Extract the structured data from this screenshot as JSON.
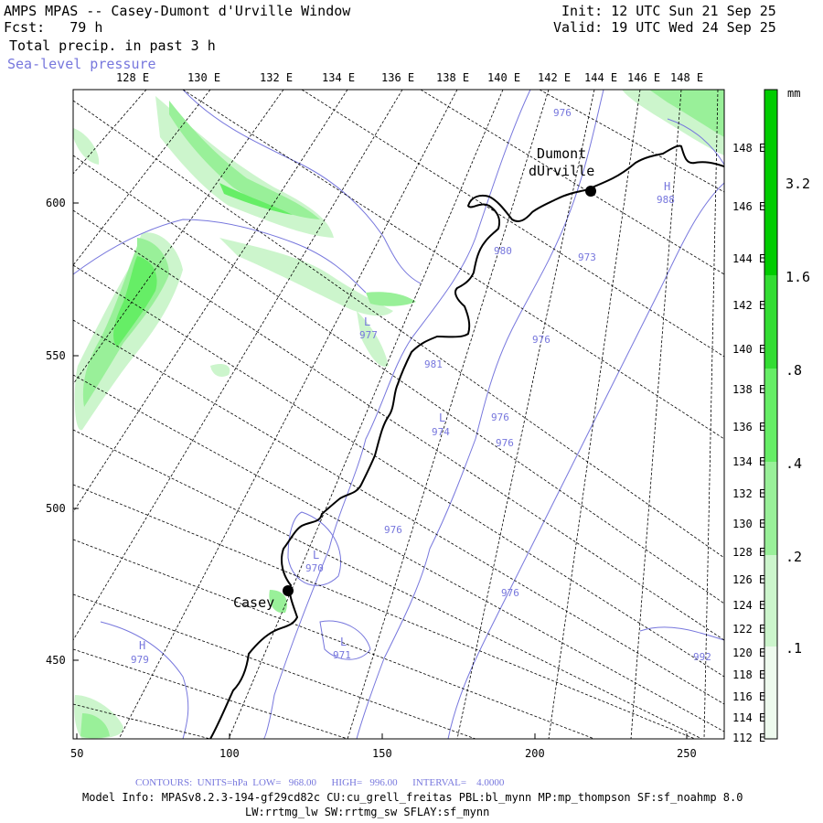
{
  "header": {
    "title": "AMPS MPAS -- Casey-Dumont d'Urville Window",
    "forecast": "Fcst:   79 h",
    "init": "Init: 12 UTC Sun 21 Sep 25",
    "valid": "Valid: 19 UTC Wed 24 Sep 25",
    "field": "Total precip. in past 3 h",
    "overlay": "Sea-level pressure"
  },
  "top_lon_labels": [
    "128 E",
    "130 E",
    "132 E",
    "134 E",
    "136 E",
    "138 E",
    "140 E",
    "142 E",
    "144 E",
    "146 E",
    "148 E"
  ],
  "right_lon_labels": [
    "148 E",
    "146 E",
    "144 E",
    "142 E",
    "140 E",
    "138 E",
    "136 E",
    "134 E",
    "132 E",
    "130 E",
    "128 E",
    "126 E",
    "124 E",
    "122 E",
    "120 E",
    "118 E",
    "116 E",
    "114 E",
    "112 E"
  ],
  "x_ticks": [
    "50",
    "100",
    "150",
    "200",
    "250"
  ],
  "y_ticks": [
    "600",
    "550",
    "500",
    "450"
  ],
  "colorbar": {
    "unit": "mm",
    "labels": [
      "3.2",
      "1.6",
      ".8",
      ".4",
      ".2",
      ".1"
    ],
    "colors": [
      "#00cc00",
      "#33dd33",
      "#66ee66",
      "#99f099",
      "#ccf5cc",
      "#eefaee"
    ]
  },
  "stations": [
    {
      "name": "Casey"
    },
    {
      "name_line1": "Dumont",
      "name_line2": "dUrville"
    }
  ],
  "contour_labels": [
    "976",
    "980",
    "973",
    "976",
    "981",
    "974",
    "976",
    "976",
    "977",
    "976",
    "970",
    "976",
    "971",
    "979",
    "992",
    "988"
  ],
  "pressure_centers": [
    "H",
    "L",
    "L",
    "L",
    "H",
    "L"
  ],
  "footer": {
    "contours": "CONTOURS:  UNITS=hPa  LOW=   968.00      HIGH=   996.00      INTERVAL=    4.0000",
    "model_info": "Model Info: MPASv8.2.3-194-gf29cd82c CU:cu_grell_freitas PBL:bl_mynn MP:mp_thompson SF:sf_noahmp 8.0",
    "model_info2": "LW:rrtmg_lw SW:rrtmg_sw SFLAY:sf_mynn"
  }
}
